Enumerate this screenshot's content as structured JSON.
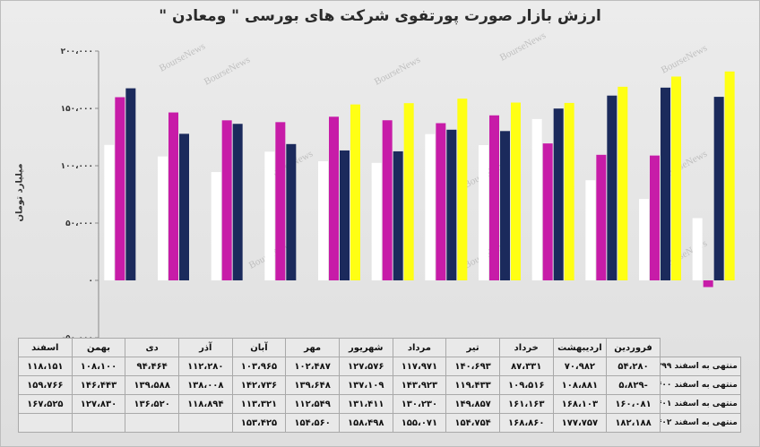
{
  "chart_data": {
    "type": "bar",
    "title": "ارزش بازار صورت پورتفوی شرکت های بورسی \" ومعادن \"",
    "ylabel": "میلیارد تومان",
    "ylim": [
      -50000,
      200000
    ],
    "yticks": [
      -50000,
      0,
      50000,
      100000,
      150000,
      200000
    ],
    "ytick_labels": [
      "-۵۰،۰۰۰",
      "۰",
      "۵۰،۰۰۰",
      "۱۰۰،۰۰۰",
      "۱۵۰،۰۰۰",
      "۲۰۰،۰۰۰"
    ],
    "grid": false,
    "legend": "table-rows",
    "categories": [
      "فروردین",
      "اردیبهشت",
      "خرداد",
      "تیر",
      "مرداد",
      "شهریور",
      "مهر",
      "آبان",
      "آذر",
      "دی",
      "بهمن",
      "اسفند"
    ],
    "series": [
      {
        "name": "منتهی به اسفند ۱۳۹۹",
        "color": "#ffffff",
        "values": [
          54280,
          70982,
          87331,
          140693,
          117971,
          127576,
          102487,
          103965,
          112280,
          94464,
          108100,
          118151
        ],
        "labels": [
          "۵۴،۲۸۰",
          "۷۰،۹۸۲",
          "۸۷،۳۳۱",
          "۱۴۰،۶۹۳",
          "۱۱۷،۹۷۱",
          "۱۲۷،۵۷۶",
          "۱۰۲،۴۸۷",
          "۱۰۳،۹۶۵",
          "۱۱۲،۲۸۰",
          "۹۴،۴۶۴",
          "۱۰۸،۱۰۰",
          "۱۱۸،۱۵۱"
        ]
      },
      {
        "name": "منتهی به اسفند ۱۴۰۰",
        "color": "#c71ca8",
        "values": [
          -5829,
          108881,
          109516,
          119433,
          143923,
          137109,
          139648,
          142736,
          138008,
          139588,
          146443,
          159766
        ],
        "labels": [
          "۵،۸۲۹-",
          "۱۰۸،۸۸۱",
          "۱۰۹،۵۱۶",
          "۱۱۹،۴۳۳",
          "۱۴۳،۹۲۳",
          "۱۳۷،۱۰۹",
          "۱۳۹،۶۴۸",
          "۱۴۲،۷۳۶",
          "۱۳۸،۰۰۸",
          "۱۳۹،۵۸۸",
          "۱۴۶،۴۴۳",
          "۱۵۹،۷۶۶"
        ]
      },
      {
        "name": "منتهی به اسفند ۱۴۰۱",
        "color": "#1b2a5c",
        "values": [
          160081,
          168103,
          161163,
          149857,
          130230,
          131411,
          112549,
          113321,
          118894,
          136520,
          127830,
          167525
        ],
        "labels": [
          "۱۶۰،۰۸۱",
          "۱۶۸،۱۰۳",
          "۱۶۱،۱۶۳",
          "۱۴۹،۸۵۷",
          "۱۳۰،۲۳۰",
          "۱۳۱،۴۱۱",
          "۱۱۲،۵۴۹",
          "۱۱۳،۳۲۱",
          "۱۱۸،۸۹۴",
          "۱۳۶،۵۲۰",
          "۱۲۷،۸۳۰",
          "۱۶۷،۵۲۵"
        ]
      },
      {
        "name": "منتهی به اسفند ۱۴۰۲",
        "color": "#ffff14",
        "values": [
          182188,
          177757,
          168860,
          154754,
          155071,
          158498,
          154560,
          153425,
          null,
          null,
          null,
          null
        ],
        "labels": [
          "۱۸۲،۱۸۸",
          "۱۷۷،۷۵۷",
          "۱۶۸،۸۶۰",
          "۱۵۴،۷۵۴",
          "۱۵۵،۰۷۱",
          "۱۵۸،۴۹۸",
          "۱۵۴،۵۶۰",
          "۱۵۳،۴۲۵",
          "",
          "",
          "",
          ""
        ]
      }
    ]
  },
  "watermark": "BourseNews"
}
